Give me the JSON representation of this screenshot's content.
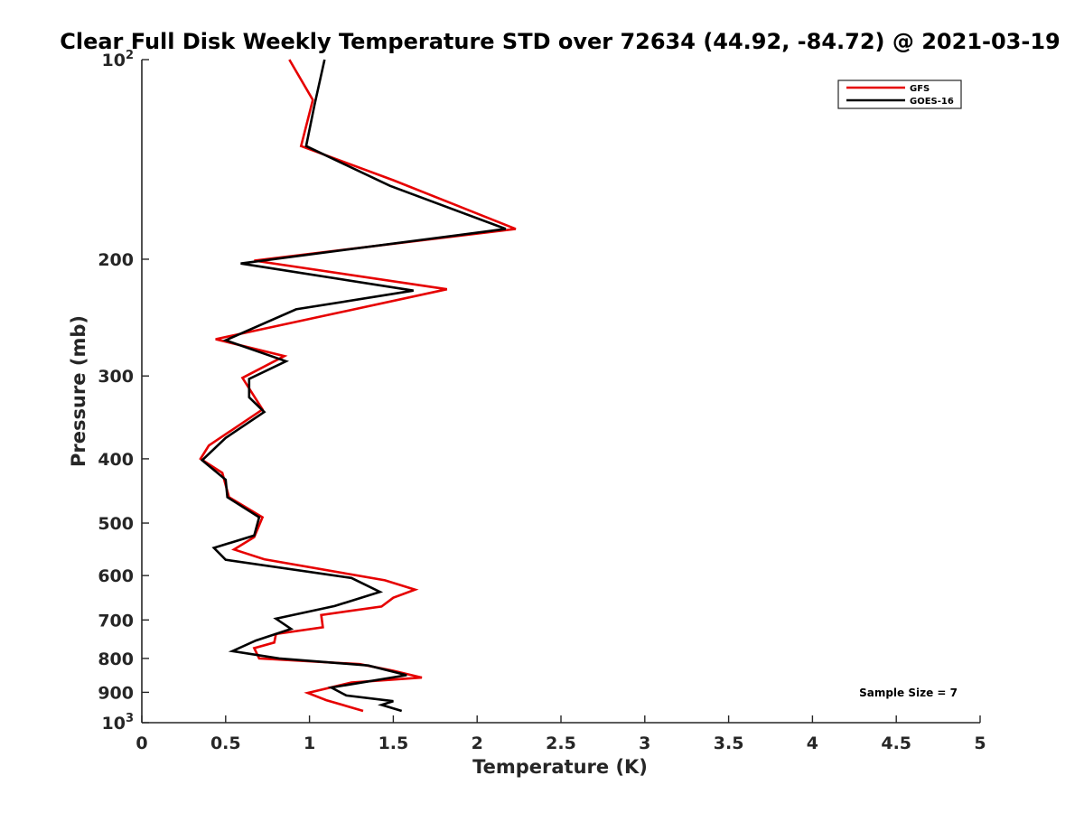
{
  "chart_data": {
    "type": "line",
    "title": "Clear Full Disk Weekly Temperature STD over 72634 (44.92, -84.72) @ 2021-03-19",
    "xlabel": "Temperature (K)",
    "ylabel": "Pressure (mb)",
    "xlim": [
      0,
      5
    ],
    "ylim": [
      100,
      1000
    ],
    "yscale": "log",
    "y_reversed": true,
    "grid": false,
    "legend_position": "top-right",
    "x_ticks": [
      0,
      0.5,
      1,
      1.5,
      2,
      2.5,
      3,
      3.5,
      4,
      4.5,
      5
    ],
    "x_tick_labels": [
      "0",
      "0.5",
      "1",
      "1.5",
      "2",
      "2.5",
      "3",
      "3.5",
      "4",
      "4.5",
      "5"
    ],
    "y_ticks": [
      {
        "value": 100,
        "base": "10",
        "exp": "2"
      },
      {
        "value": 200,
        "label": "200"
      },
      {
        "value": 300,
        "label": "300"
      },
      {
        "value": 400,
        "label": "400"
      },
      {
        "value": 500,
        "label": "500"
      },
      {
        "value": 600,
        "label": "600"
      },
      {
        "value": 700,
        "label": "700"
      },
      {
        "value": 800,
        "label": "800"
      },
      {
        "value": 900,
        "label": "900"
      },
      {
        "value": 1000,
        "base": "10",
        "exp": "3"
      }
    ],
    "annotation": "Sample Size = 7",
    "series": [
      {
        "name": "GFS",
        "color": "#e60000",
        "points": [
          {
            "t": 0.88,
            "p": 100
          },
          {
            "t": 1.02,
            "p": 115
          },
          {
            "t": 0.95,
            "p": 135
          },
          {
            "t": 1.5,
            "p": 152
          },
          {
            "t": 2.23,
            "p": 180
          },
          {
            "t": 0.67,
            "p": 201
          },
          {
            "t": 1.82,
            "p": 222
          },
          {
            "t": 0.44,
            "p": 264
          },
          {
            "t": 0.85,
            "p": 280
          },
          {
            "t": 0.6,
            "p": 302
          },
          {
            "t": 0.72,
            "p": 337
          },
          {
            "t": 0.4,
            "p": 382
          },
          {
            "t": 0.35,
            "p": 400
          },
          {
            "t": 0.48,
            "p": 420
          },
          {
            "t": 0.52,
            "p": 457
          },
          {
            "t": 0.72,
            "p": 490
          },
          {
            "t": 0.67,
            "p": 525
          },
          {
            "t": 0.55,
            "p": 548
          },
          {
            "t": 0.73,
            "p": 567
          },
          {
            "t": 1.45,
            "p": 610
          },
          {
            "t": 1.63,
            "p": 630
          },
          {
            "t": 1.5,
            "p": 648
          },
          {
            "t": 1.43,
            "p": 668
          },
          {
            "t": 1.07,
            "p": 688
          },
          {
            "t": 1.08,
            "p": 718
          },
          {
            "t": 0.8,
            "p": 735
          },
          {
            "t": 0.79,
            "p": 757
          },
          {
            "t": 0.67,
            "p": 772
          },
          {
            "t": 0.7,
            "p": 800
          },
          {
            "t": 1.3,
            "p": 816
          },
          {
            "t": 1.5,
            "p": 835
          },
          {
            "t": 1.67,
            "p": 855
          },
          {
            "t": 1.25,
            "p": 870
          },
          {
            "t": 0.99,
            "p": 902
          },
          {
            "t": 1.1,
            "p": 925
          },
          {
            "t": 1.32,
            "p": 960
          }
        ]
      },
      {
        "name": "GOES-16",
        "color": "#000000",
        "points": [
          {
            "t": 1.09,
            "p": 100
          },
          {
            "t": 1.03,
            "p": 117
          },
          {
            "t": 0.98,
            "p": 135
          },
          {
            "t": 1.48,
            "p": 155
          },
          {
            "t": 2.17,
            "p": 180
          },
          {
            "t": 0.59,
            "p": 203
          },
          {
            "t": 1.62,
            "p": 223
          },
          {
            "t": 0.92,
            "p": 238
          },
          {
            "t": 0.5,
            "p": 265
          },
          {
            "t": 0.86,
            "p": 285
          },
          {
            "t": 0.64,
            "p": 303
          },
          {
            "t": 0.64,
            "p": 323
          },
          {
            "t": 0.73,
            "p": 340
          },
          {
            "t": 0.5,
            "p": 372
          },
          {
            "t": 0.36,
            "p": 402
          },
          {
            "t": 0.5,
            "p": 430
          },
          {
            "t": 0.51,
            "p": 457
          },
          {
            "t": 0.7,
            "p": 490
          },
          {
            "t": 0.67,
            "p": 522
          },
          {
            "t": 0.43,
            "p": 545
          },
          {
            "t": 0.5,
            "p": 568
          },
          {
            "t": 1.25,
            "p": 605
          },
          {
            "t": 1.42,
            "p": 635
          },
          {
            "t": 1.15,
            "p": 667
          },
          {
            "t": 0.8,
            "p": 697
          },
          {
            "t": 0.89,
            "p": 722
          },
          {
            "t": 0.68,
            "p": 752
          },
          {
            "t": 0.54,
            "p": 780
          },
          {
            "t": 0.82,
            "p": 800
          },
          {
            "t": 1.35,
            "p": 820
          },
          {
            "t": 1.58,
            "p": 848
          },
          {
            "t": 1.13,
            "p": 885
          },
          {
            "t": 1.22,
            "p": 910
          },
          {
            "t": 1.5,
            "p": 928
          },
          {
            "t": 1.43,
            "p": 940
          },
          {
            "t": 1.55,
            "p": 960
          }
        ]
      }
    ]
  }
}
